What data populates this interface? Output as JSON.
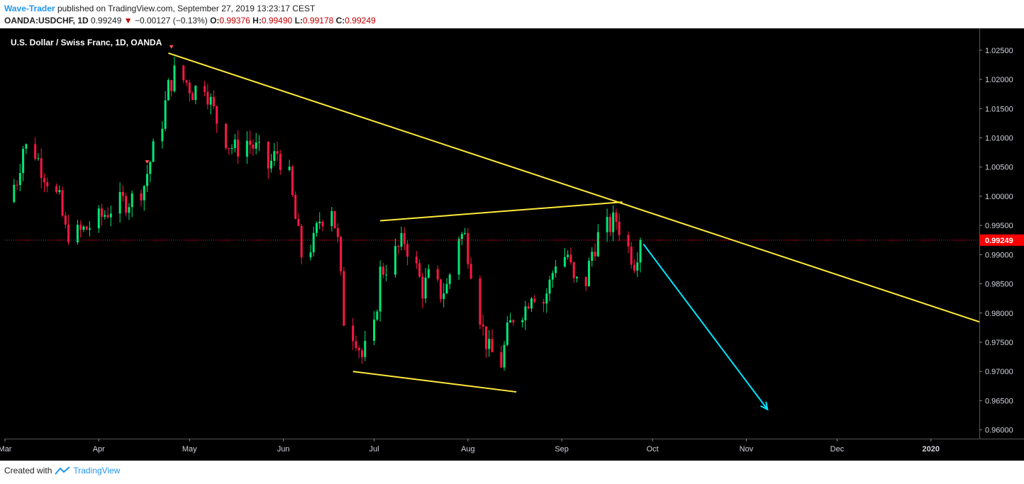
{
  "header": {
    "author": "Wave-Trader",
    "published_text": "published on TradingView.com, September 27, 2019 13:23:17 CEST",
    "symbol": "OANDA:USDCHF, 1D",
    "last": "0.99249",
    "change": "−0.00127 (−0.13%)",
    "open_label": "O:",
    "open": "0.99376",
    "high_label": "H:",
    "high": "0.99490",
    "low_label": "L:",
    "low": "0.99178",
    "close_label": "C:",
    "close": "0.99249"
  },
  "chart_title": "U.S. Dollar / Swiss Franc, 1D, OANDA",
  "footer": {
    "created_with": "Created with",
    "brand": "TradingView"
  },
  "colors": {
    "background": "#000000",
    "up": "#00e676",
    "down": "#ff1744",
    "trendline": "#ffeb3b",
    "arrow": "#00e5ff",
    "price_line": "#ff1744",
    "label_bg": "#ff0000",
    "axis_text": "#d1d4dc"
  },
  "chart_data": {
    "type": "candlestick",
    "title": "U.S. Dollar / Swiss Franc, 1D, OANDA",
    "ylim": [
      0.9585,
      1.0285
    ],
    "y_ticks": [
      "1.02500",
      "1.02000",
      "1.01500",
      "1.01000",
      "1.00500",
      "1.00000",
      "0.99500",
      "0.99000",
      "0.98500",
      "0.98000",
      "0.97500",
      "0.97000",
      "0.96500",
      "0.96000"
    ],
    "x_ticks": [
      "Mar",
      "Apr",
      "May",
      "Jun",
      "Jul",
      "Aug",
      "Sep",
      "Oct",
      "Nov",
      "Dec",
      "2020"
    ],
    "x_tick_dates": [
      "2019-03-01",
      "2019-04-01",
      "2019-05-01",
      "2019-06-01",
      "2019-07-01",
      "2019-08-01",
      "2019-09-01",
      "2019-10-01",
      "2019-11-01",
      "2019-12-01",
      "2020-01-01"
    ],
    "x_range": [
      "2019-03-01",
      "2020-01-17"
    ],
    "current_price": "0.99249",
    "price_path": [
      [
        "2019-03-01",
        0.999
      ],
      [
        "2019-03-05",
        1.003
      ],
      [
        "2019-03-07",
        1.0085
      ],
      [
        "2019-03-11",
        1.0075
      ],
      [
        "2019-03-13",
        1.005
      ],
      [
        "2019-03-15",
        1.003
      ],
      [
        "2019-03-19",
        0.999
      ],
      [
        "2019-03-21",
        0.994
      ],
      [
        "2019-03-25",
        0.9935
      ],
      [
        "2019-03-28",
        0.9945
      ],
      [
        "2019-04-01",
        0.996
      ],
      [
        "2019-04-05",
        0.998
      ],
      [
        "2019-04-09",
        0.999
      ],
      [
        "2019-04-12",
        0.9995
      ],
      [
        "2019-04-16",
        1.002
      ],
      [
        "2019-04-18",
        1.006
      ],
      [
        "2019-04-22",
        1.013
      ],
      [
        "2019-04-24",
        1.0185
      ],
      [
        "2019-04-26",
        1.021
      ],
      [
        "2019-04-30",
        1.0195
      ],
      [
        "2019-05-02",
        1.018
      ],
      [
        "2019-05-06",
        1.0195
      ],
      [
        "2019-05-08",
        1.016
      ],
      [
        "2019-05-10",
        1.013
      ],
      [
        "2019-05-14",
        1.009
      ],
      [
        "2019-05-16",
        1.008
      ],
      [
        "2019-05-20",
        1.0095
      ],
      [
        "2019-05-23",
        1.008
      ],
      [
        "2019-05-27",
        1.005
      ],
      [
        "2019-05-30",
        1.0075
      ],
      [
        "2019-06-03",
        1.003
      ],
      [
        "2019-06-05",
        0.996
      ],
      [
        "2019-06-07",
        0.99
      ],
      [
        "2019-06-11",
        0.992
      ],
      [
        "2019-06-13",
        0.996
      ],
      [
        "2019-06-17",
        0.9985
      ],
      [
        "2019-06-19",
        0.992
      ],
      [
        "2019-06-21",
        0.979
      ],
      [
        "2019-06-25",
        0.976
      ],
      [
        "2019-06-27",
        0.9725
      ],
      [
        "2019-07-01",
        0.977
      ],
      [
        "2019-07-03",
        0.987
      ],
      [
        "2019-07-05",
        0.988
      ],
      [
        "2019-07-09",
        0.991
      ],
      [
        "2019-07-11",
        0.9925
      ],
      [
        "2019-07-15",
        0.9875
      ],
      [
        "2019-07-17",
        0.984
      ],
      [
        "2019-07-19",
        0.986
      ],
      [
        "2019-07-23",
        0.9835
      ],
      [
        "2019-07-25",
        0.9845
      ],
      [
        "2019-07-29",
        0.9935
      ],
      [
        "2019-07-31",
        0.993
      ],
      [
        "2019-08-02",
        0.988
      ],
      [
        "2019-08-06",
        0.977
      ],
      [
        "2019-08-08",
        0.9735
      ],
      [
        "2019-08-12",
        0.9715
      ],
      [
        "2019-08-14",
        0.9765
      ],
      [
        "2019-08-16",
        0.9795
      ],
      [
        "2019-08-20",
        0.981
      ],
      [
        "2019-08-22",
        0.984
      ],
      [
        "2019-08-26",
        0.982
      ],
      [
        "2019-08-28",
        0.985
      ],
      [
        "2019-08-30",
        0.989
      ],
      [
        "2019-09-03",
        0.99
      ],
      [
        "2019-09-05",
        0.985
      ],
      [
        "2019-09-09",
        0.9855
      ],
      [
        "2019-09-11",
        0.9905
      ],
      [
        "2019-09-13",
        0.993
      ],
      [
        "2019-09-17",
        0.995
      ],
      [
        "2019-09-19",
        0.996
      ],
      [
        "2019-09-23",
        0.991
      ],
      [
        "2019-09-25",
        0.989
      ],
      [
        "2019-09-27",
        0.99249
      ]
    ],
    "annotations": [
      {
        "type": "trendline",
        "from": [
          "2019-04-24",
          1.0245
        ],
        "to": [
          "2020-01-17",
          0.9785
        ]
      },
      {
        "type": "trendline",
        "from": [
          "2019-07-03",
          0.9958
        ],
        "to": [
          "2019-09-21",
          0.999
        ]
      },
      {
        "type": "trendline",
        "from": [
          "2019-06-24",
          0.97
        ],
        "to": [
          "2019-08-17",
          0.9665
        ]
      },
      {
        "type": "arrow",
        "from": [
          "2019-09-28",
          0.9918
        ],
        "to": [
          "2019-11-08",
          0.9635
        ]
      }
    ]
  }
}
